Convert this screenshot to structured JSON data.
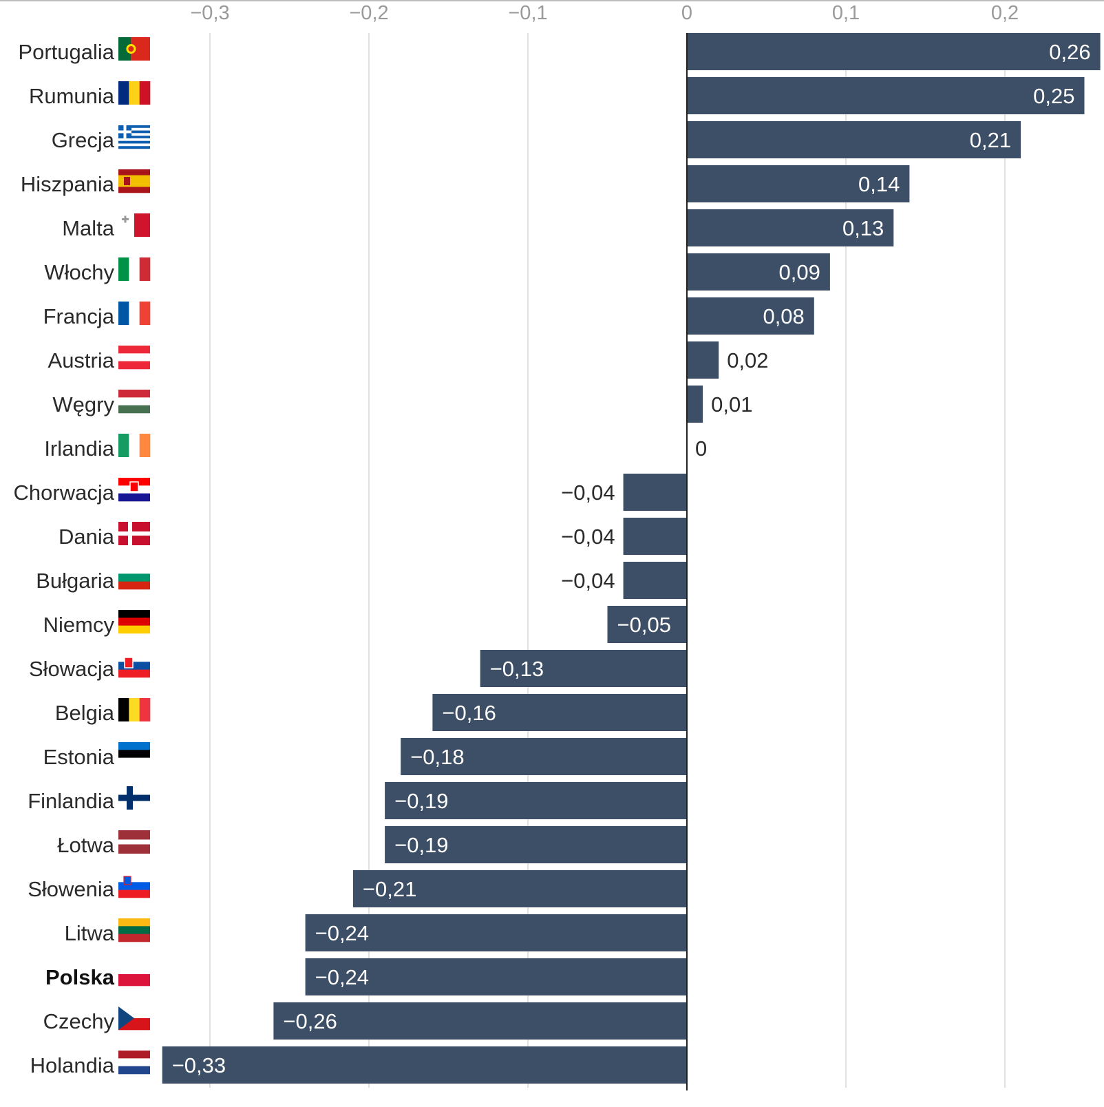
{
  "chart_data": {
    "type": "bar",
    "orientation": "horizontal",
    "x_ticks": [
      -0.3,
      -0.2,
      -0.1,
      0,
      0.1,
      0.2
    ],
    "x_tick_labels": [
      "−0,3",
      "−0,2",
      "−0,1",
      "0",
      "0,1",
      "0,2"
    ],
    "xlim": [
      -0.33,
      0.26
    ],
    "grid": "vertical",
    "highlight_category": "Polska",
    "categories": [
      "Portugalia",
      "Rumunia",
      "Grecja",
      "Hiszpania",
      "Malta",
      "Włochy",
      "Francja",
      "Austria",
      "Węgry",
      "Irlandia",
      "Chorwacja",
      "Dania",
      "Bułgaria",
      "Niemcy",
      "Słowacja",
      "Belgia",
      "Estonia",
      "Finlandia",
      "Łotwa",
      "Słowenia",
      "Litwa",
      "Polska",
      "Czechy",
      "Holandia"
    ],
    "values": [
      0.26,
      0.25,
      0.21,
      0.14,
      0.13,
      0.09,
      0.08,
      0.02,
      0.01,
      0,
      -0.04,
      -0.04,
      -0.04,
      -0.05,
      -0.13,
      -0.16,
      -0.18,
      -0.19,
      -0.19,
      -0.21,
      -0.24,
      -0.24,
      -0.26,
      -0.33
    ],
    "value_labels": [
      "0,26",
      "0,25",
      "0,21",
      "0,14",
      "0,13",
      "0,09",
      "0,08",
      "0,02",
      "0,01",
      "0",
      "−0,04",
      "−0,04",
      "−0,04",
      "−0,05",
      "−0,13",
      "−0,16",
      "−0,18",
      "−0,19",
      "−0,19",
      "−0,21",
      "−0,24",
      "−0,24",
      "−0,26",
      "−0,33"
    ],
    "flags": [
      "portugal-flag",
      "romania-flag",
      "greece-flag",
      "spain-flag",
      "malta-flag",
      "italy-flag",
      "france-flag",
      "austria-flag",
      "hungary-flag",
      "ireland-flag",
      "croatia-flag",
      "denmark-flag",
      "bulgaria-flag",
      "germany-flag",
      "slovakia-flag",
      "belgium-flag",
      "estonia-flag",
      "finland-flag",
      "latvia-flag",
      "slovenia-flag",
      "lithuania-flag",
      "poland-flag",
      "czechia-flag",
      "netherlands-flag"
    ],
    "colors": {
      "bar": "#3d4f66",
      "grid": "#e1e1e1",
      "axis": "#222222",
      "label_inside": "#ffffff",
      "label_outside": "#2b2b2b",
      "tick": "#9a9a9a"
    }
  }
}
